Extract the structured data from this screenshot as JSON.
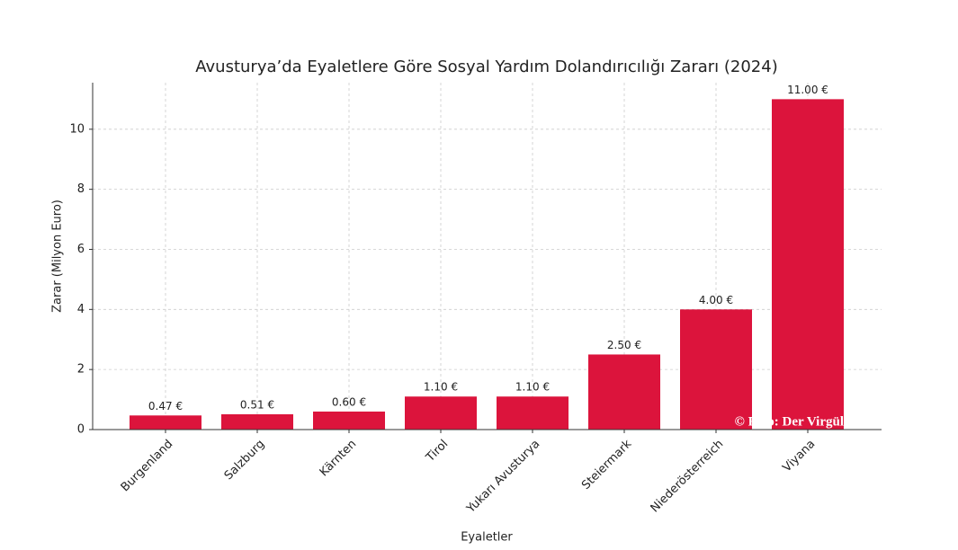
{
  "chart_data": {
    "type": "bar",
    "title": "Avusturya’da Eyaletlere Göre Sosyal Yardım Dolandırıcılığı Zararı (2024)",
    "x_label": "Eyaletler",
    "y_label": "Zarar (Milyon Euro)",
    "categories": [
      "Burgenland",
      "Salzburg",
      "Kärnten",
      "Tirol",
      "Yukarı Avusturya",
      "Steiermark",
      "Niederösterreich",
      "Viyana"
    ],
    "values": [
      0.47,
      0.51,
      0.6,
      1.1,
      1.1,
      2.5,
      4.0,
      11.0
    ],
    "value_labels": [
      "0.47 €",
      "0.51 €",
      "0.60 €",
      "1.10 €",
      "1.10 €",
      "2.50 €",
      "4.00 €",
      "11.00 €"
    ],
    "color": "#dc143c",
    "ylim": [
      0,
      11.55
    ],
    "yticks": [
      0,
      2,
      4,
      6,
      8,
      10
    ],
    "grid": true,
    "annotation": "© Foto: Der Virgül"
  }
}
